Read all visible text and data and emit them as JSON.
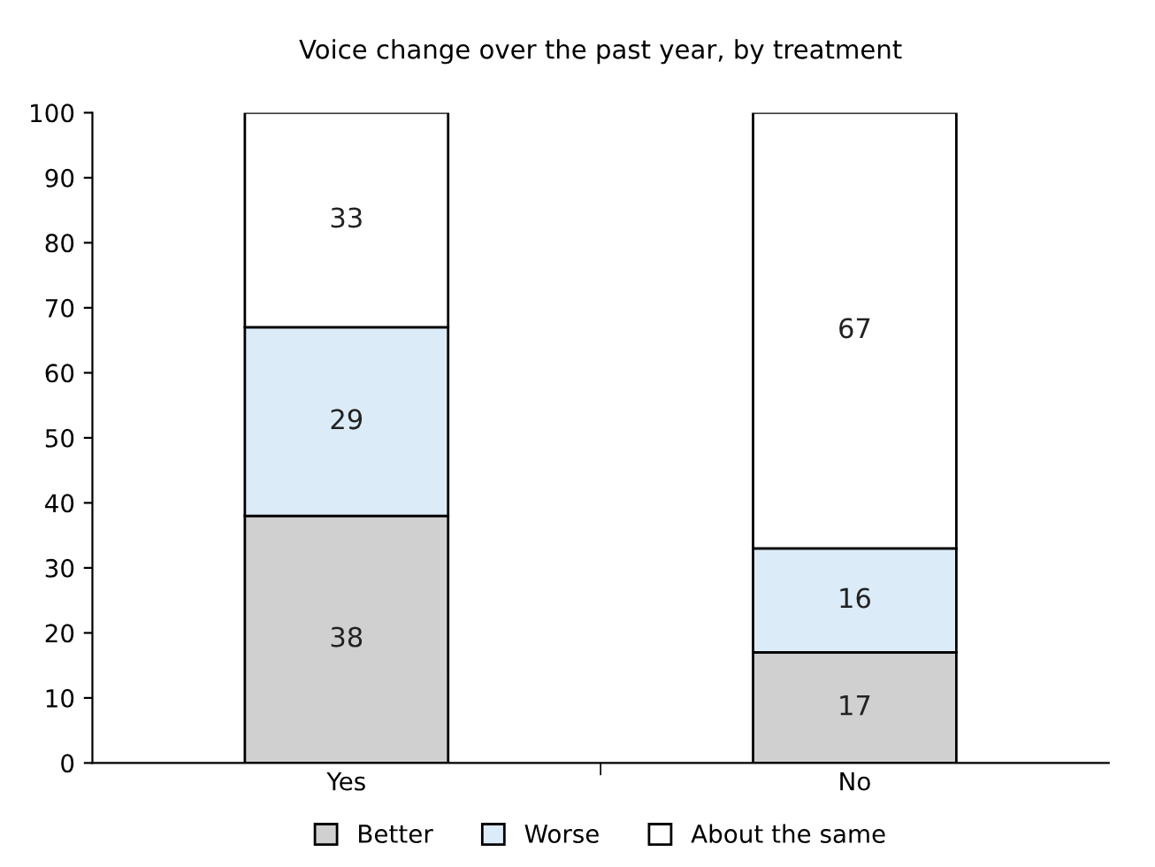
{
  "chart_data": {
    "type": "bar",
    "title": "Voice change over the past year, by treatment",
    "categories": [
      "Yes",
      "No"
    ],
    "stacked": true,
    "data_labels": true,
    "legend": "bottom",
    "grid": false,
    "ylim": [
      0,
      100
    ],
    "yticks": [
      0,
      10,
      20,
      30,
      40,
      50,
      60,
      70,
      80,
      90,
      100
    ],
    "series": [
      {
        "name": "Better",
        "color": "#d0d0d0",
        "values": [
          38,
          17
        ]
      },
      {
        "name": "Worse",
        "color": "#dcebf8",
        "values": [
          29,
          16
        ]
      },
      {
        "name": "About the same",
        "color": "#ffffff",
        "values": [
          33,
          67
        ]
      }
    ]
  }
}
